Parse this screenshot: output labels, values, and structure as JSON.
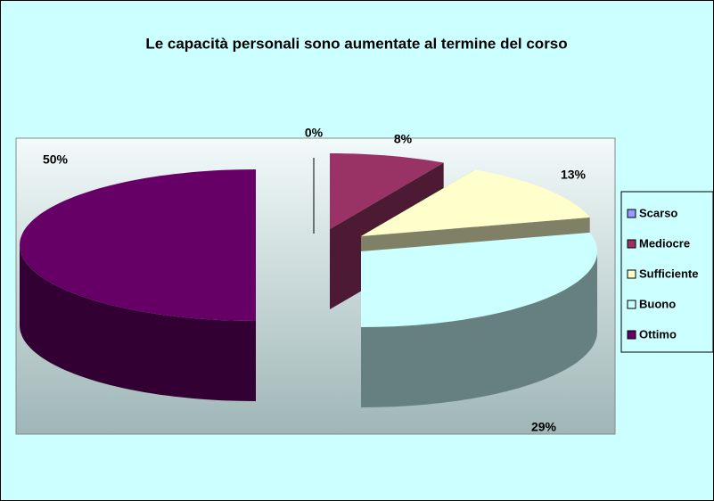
{
  "chart_data": {
    "type": "pie3d",
    "title": "Le capacità personali sono aumentate al termine del corso",
    "categories": [
      "Scarso",
      "Mediocre",
      "Sufficiente",
      "Buono",
      "Ottimo"
    ],
    "values": [
      0,
      8,
      13,
      29,
      50
    ],
    "value_labels": [
      "0%",
      "8%",
      "13%",
      "29%",
      "50%"
    ],
    "colors": [
      "#9999ff",
      "#993366",
      "#ffffcc",
      "#ccffff",
      "#660066"
    ],
    "legend": "right"
  }
}
